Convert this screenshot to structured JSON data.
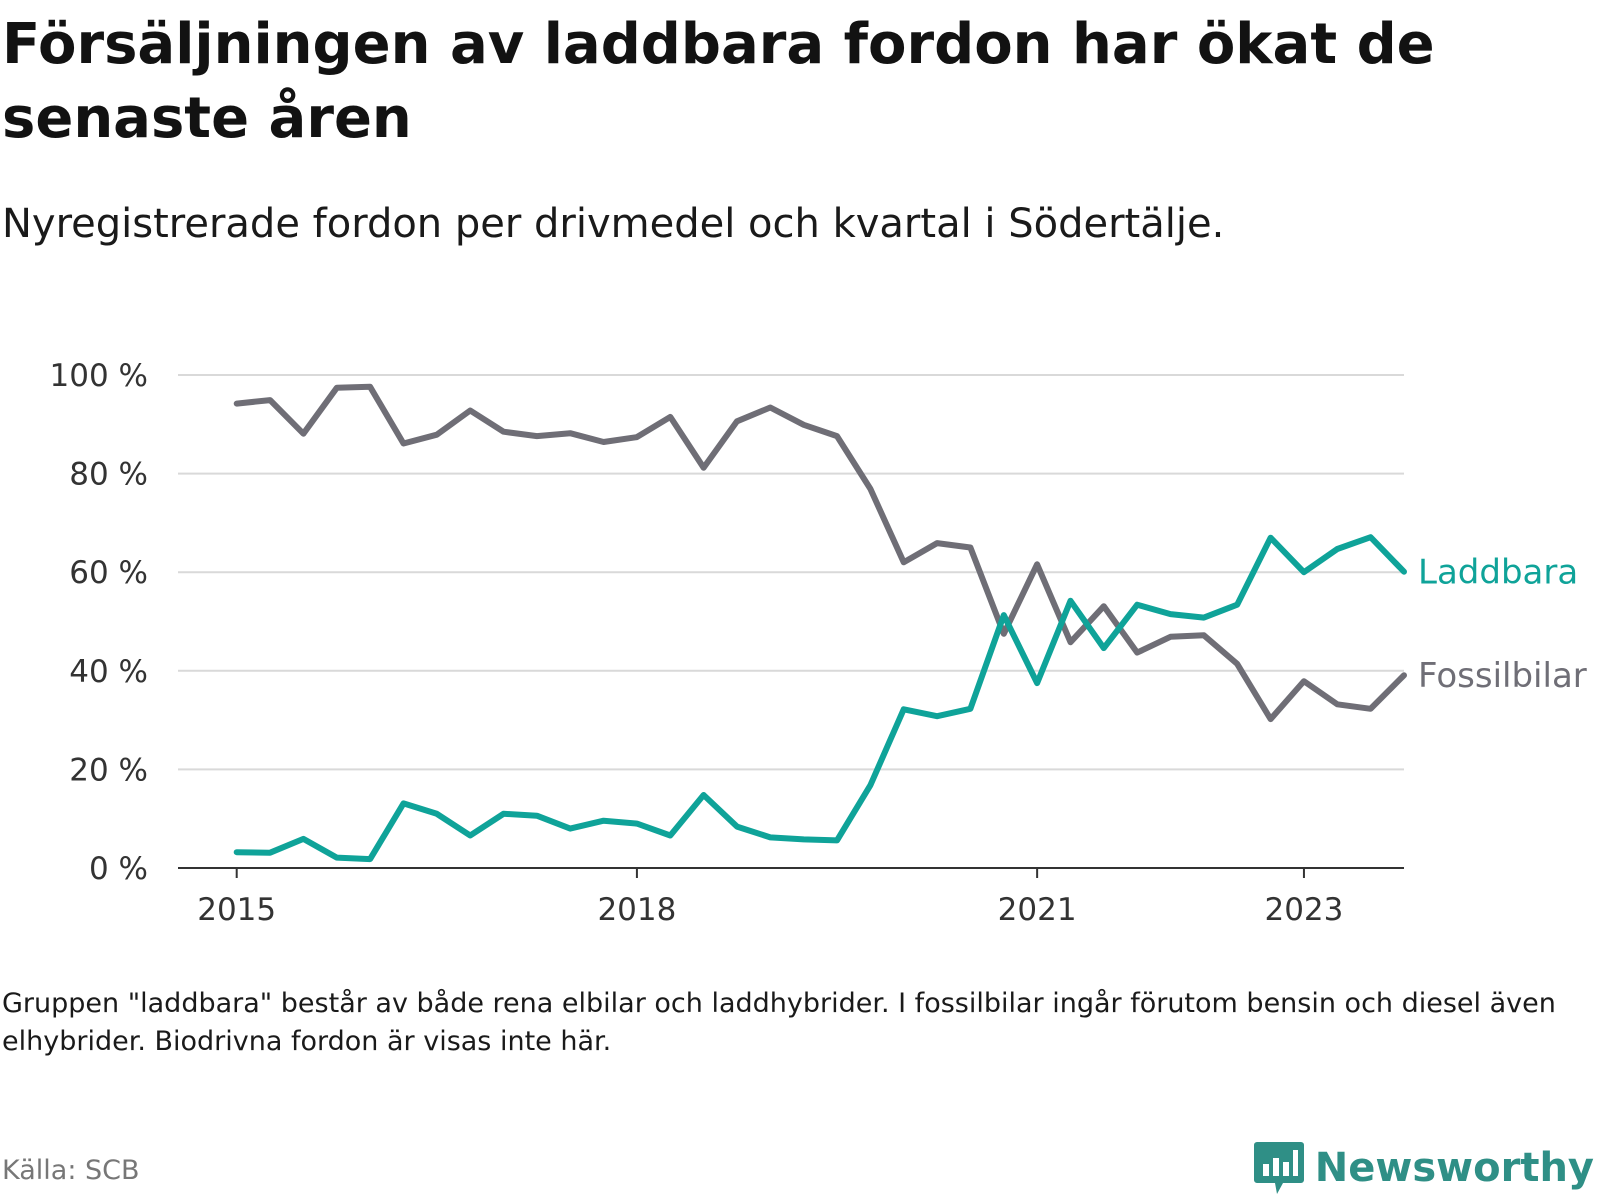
{
  "title": "Försäljningen av laddbara fordon har ökat de senaste åren",
  "subtitle": "Nyregistrerade fordon per drivmedel och kvartal i Södertälje.",
  "note": "Gruppen \"laddbara\" består av både rena elbilar och laddhybrider. I fossilbilar ingår förutom bensin och diesel även elhybrider. Biodrivna fordon är visas inte här.",
  "source": "Källa: SCB",
  "brand": "Newsworthy",
  "colors": {
    "laddbara": "#0fa399",
    "fossilbilar": "#6f6e76",
    "grid": "#d9d9d9",
    "axis": "#333333",
    "brand": "#2f8f86"
  },
  "chart_data": {
    "type": "line",
    "x": [
      2015.0,
      2015.25,
      2015.5,
      2015.75,
      2016.0,
      2016.25,
      2016.5,
      2016.75,
      2017.0,
      2017.25,
      2017.5,
      2017.75,
      2018.0,
      2018.25,
      2018.5,
      2018.75,
      2019.0,
      2019.25,
      2019.5,
      2019.75,
      2020.0,
      2020.25,
      2020.5,
      2020.75,
      2021.0,
      2021.25,
      2021.5,
      2021.75,
      2022.0,
      2022.25,
      2022.5,
      2022.75,
      2023.0,
      2023.25,
      2023.5,
      2023.75
    ],
    "series": [
      {
        "name": "Laddbara",
        "color": "#0fa399",
        "values": [
          3.2,
          3.1,
          5.9,
          2.1,
          1.8,
          13.1,
          11.0,
          6.6,
          11.0,
          10.6,
          8.0,
          9.6,
          9.0,
          6.6,
          14.8,
          8.4,
          6.2,
          5.8,
          5.6,
          16.8,
          32.2,
          30.8,
          32.3,
          51.3,
          37.5,
          54.2,
          44.6,
          53.4,
          51.5,
          50.8,
          53.4,
          67.0,
          60.0,
          64.7,
          67.1,
          60.1
        ]
      },
      {
        "name": "Fossilbilar",
        "color": "#6f6e76",
        "values": [
          94.2,
          94.9,
          88.1,
          97.4,
          97.6,
          86.1,
          87.9,
          92.8,
          88.5,
          87.6,
          88.2,
          86.4,
          87.4,
          91.5,
          81.2,
          90.6,
          93.4,
          89.9,
          87.6,
          76.9,
          62.0,
          65.9,
          65.0,
          47.5,
          61.6,
          45.8,
          53.1,
          43.7,
          46.9,
          47.2,
          41.4,
          30.2,
          37.9,
          33.2,
          32.3,
          39.1
        ]
      }
    ],
    "xticks": [
      2015,
      2018,
      2021,
      2023
    ],
    "xtick_labels": [
      "2015",
      "2018",
      "2021",
      "2023"
    ],
    "yticks": [
      0,
      20,
      40,
      60,
      80,
      100
    ],
    "ytick_labels": [
      "0 %",
      "20 %",
      "40 %",
      "60 %",
      "80 %",
      "100 %"
    ],
    "ylim": [
      0,
      100
    ],
    "xlim": [
      2014.56,
      2023.75
    ],
    "xlabel": "",
    "ylabel": "",
    "grid": true,
    "legend": "inline-right"
  }
}
